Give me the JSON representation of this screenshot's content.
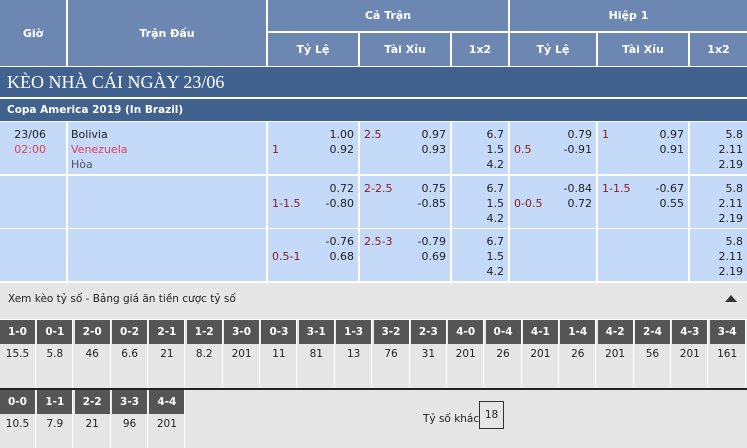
{
  "header": {
    "gio": "Giờ",
    "tran_dau": "Trận Đấu",
    "ca_tran": "Cả Trận",
    "hiep1": "Hiệp 1",
    "ty_le": "Tỷ Lệ",
    "tai_xiu": "Tài Xỉu",
    "x12": "1x2"
  },
  "title": "KÈO NHÀ CÁI NGÀY 23/06",
  "league": "Copa America 2019 (In Brazil)",
  "match": {
    "date": "23/06",
    "time": "02:00",
    "home": "Bolivia",
    "away": "Venezuela",
    "draw": "Hòa"
  },
  "rows": [
    {
      "hdp": "1",
      "hdp_odds": [
        "1.00",
        "0.92"
      ],
      "ou": "2.5",
      "ou_odds": [
        "0.97",
        "0.93"
      ],
      "x12": [
        "6.7",
        "1.5",
        "4.2"
      ],
      "h1_hdp": "0.5",
      "h1_hdp_odds": [
        "0.79",
        "-0.91"
      ],
      "h1_ou": "1",
      "h1_ou_odds": [
        "0.97",
        "0.91"
      ],
      "h1_x12": [
        "5.8",
        "2.11",
        "2.19"
      ]
    },
    {
      "hdp": "1-1.5",
      "hdp_odds": [
        "0.72",
        "-0.80"
      ],
      "ou": "2-2.5",
      "ou_odds": [
        "0.75",
        "-0.85"
      ],
      "x12": [
        "6.7",
        "1.5",
        "4.2"
      ],
      "h1_hdp": "0-0.5",
      "h1_hdp_odds": [
        "-0.84",
        "0.72"
      ],
      "h1_ou": "1-1.5",
      "h1_ou_odds": [
        "-0.67",
        "0.55"
      ],
      "h1_x12": [
        "5.8",
        "2.11",
        "2.19"
      ]
    },
    {
      "hdp": "0.5-1",
      "hdp_odds": [
        "-0.76",
        "0.68"
      ],
      "ou": "2.5-3",
      "ou_odds": [
        "-0.79",
        "0.69"
      ],
      "x12": [
        "6.7",
        "1.5",
        "4.2"
      ],
      "h1_hdp": "",
      "h1_hdp_odds": [
        "",
        ""
      ],
      "h1_ou": "",
      "h1_ou_odds": [
        "",
        ""
      ],
      "h1_x12": [
        "5.8",
        "2.11",
        "2.19"
      ]
    }
  ],
  "correct_score": {
    "label": "Xem kèo tỷ số - Bảng giá ăn tiền cược tỷ số",
    "collapse_icon": "triangle-up-icon",
    "scores": [
      [
        "1-0",
        "15.5"
      ],
      [
        "0-1",
        "5.8"
      ],
      [
        "2-0",
        "46"
      ],
      [
        "0-2",
        "6.6"
      ],
      [
        "2-1",
        "21"
      ],
      [
        "1-2",
        "8.2"
      ],
      [
        "3-0",
        "201"
      ],
      [
        "0-3",
        "11"
      ],
      [
        "3-1",
        "81"
      ],
      [
        "1-3",
        "13"
      ],
      [
        "3-2",
        "76"
      ],
      [
        "2-3",
        "31"
      ],
      [
        "4-0",
        "201"
      ],
      [
        "0-4",
        "26"
      ],
      [
        "4-1",
        "201"
      ],
      [
        "1-4",
        "26"
      ],
      [
        "4-2",
        "201"
      ],
      [
        "2-4",
        "56"
      ],
      [
        "4-3",
        "201"
      ],
      [
        "3-4",
        "161"
      ]
    ],
    "draws": [
      [
        "0-0",
        "10.5"
      ],
      [
        "1-1",
        "7.9"
      ],
      [
        "2-2",
        "21"
      ],
      [
        "3-3",
        "96"
      ],
      [
        "4-4",
        "201"
      ]
    ],
    "other_label": "Tỷ số khác",
    "other_value": "18"
  }
}
